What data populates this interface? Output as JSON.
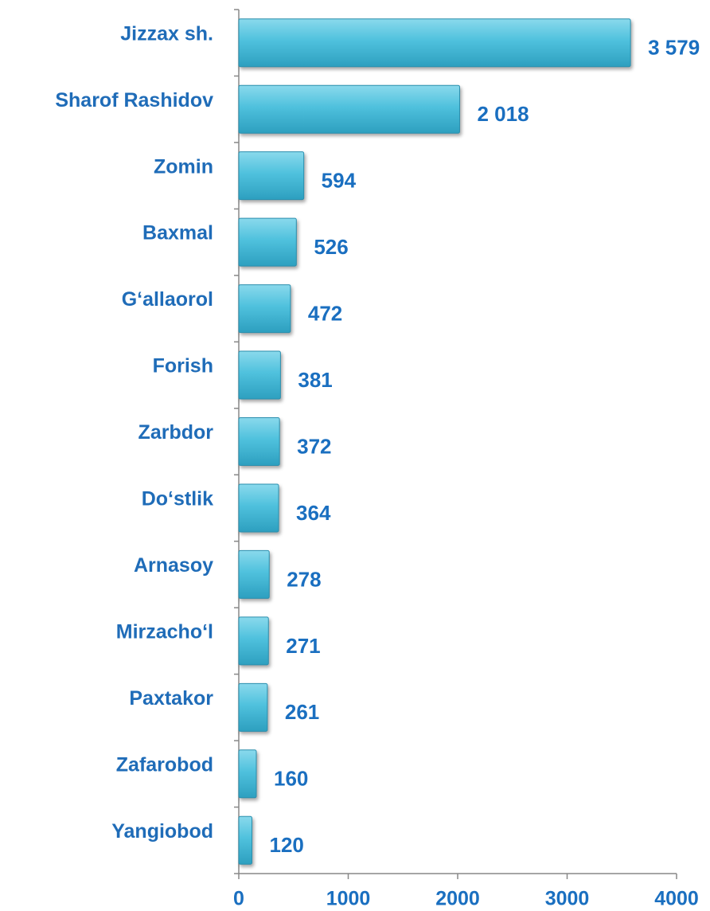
{
  "chart_data": {
    "type": "bar",
    "orientation": "horizontal",
    "categories": [
      "Jizzax sh.",
      "Sharof Rashidov",
      "Zomin",
      "Baxmal",
      "G‘allaorol",
      "Forish",
      "Zarbdor",
      "Do‘stlik",
      "Arnasoy",
      "Mirzacho‘l",
      "Paxtakor",
      "Zafarobod",
      "Yangiobod"
    ],
    "values": [
      3579,
      2018,
      594,
      526,
      472,
      381,
      372,
      364,
      278,
      271,
      261,
      160,
      120
    ],
    "value_labels": [
      "3 579",
      "2 018",
      "594",
      "526",
      "472",
      "381",
      "372",
      "364",
      "278",
      "271",
      "261",
      "160",
      "120"
    ],
    "color": "#4fc1dd",
    "xlim": [
      0,
      4000
    ],
    "xticks": [
      0,
      1000,
      2000,
      3000,
      4000
    ]
  }
}
